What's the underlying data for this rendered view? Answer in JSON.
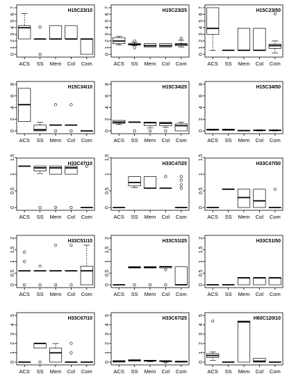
{
  "chart_data": [
    {
      "type": "boxplot",
      "title": "H15C23I10",
      "categories": [
        "ACS",
        "SS",
        "Mem",
        "Col",
        "Com"
      ],
      "ylim": [
        0,
        7
      ],
      "yticks": [
        0,
        1,
        2,
        3,
        4,
        5,
        6,
        7
      ],
      "boxes": [
        {
          "min": 2.3,
          "q1": 2.3,
          "median": 4.0,
          "q3": 4.3,
          "max": 6.1,
          "outliers": []
        },
        {
          "min": 2.3,
          "q1": 2.3,
          "median": 2.3,
          "q3": 2.3,
          "max": 2.3,
          "outliers": [
            4.1,
            0.0
          ]
        },
        {
          "min": 2.3,
          "q1": 2.3,
          "median": 2.3,
          "q3": 4.3,
          "max": 4.3,
          "outliers": []
        },
        {
          "min": 2.3,
          "q1": 2.3,
          "median": 2.3,
          "q3": 4.3,
          "max": 4.3,
          "outliers": []
        },
        {
          "min": 0.0,
          "q1": 0.0,
          "median": 2.3,
          "q3": 2.3,
          "max": 2.3,
          "outliers": []
        }
      ]
    },
    {
      "type": "boxplot",
      "title": "H15C23I25",
      "categories": [
        "ACS",
        "SS",
        "Mem",
        "Col",
        "Com"
      ],
      "ylim": [
        0,
        7
      ],
      "yticks": [
        0,
        1,
        2,
        3,
        4,
        5,
        6,
        7
      ],
      "boxes": [
        {
          "min": 1.4,
          "q1": 1.6,
          "median": 2.0,
          "q3": 2.5,
          "max": 2.7,
          "outliers": []
        },
        {
          "min": 1.3,
          "q1": 1.4,
          "median": 1.5,
          "q3": 1.6,
          "max": 1.8,
          "outliers": [
            1.0,
            2.0
          ]
        },
        {
          "min": 1.1,
          "q1": 1.1,
          "median": 1.3,
          "q3": 1.6,
          "max": 1.6,
          "outliers": []
        },
        {
          "min": 1.1,
          "q1": 1.1,
          "median": 1.3,
          "q3": 1.6,
          "max": 1.6,
          "outliers": []
        },
        {
          "min": 1.1,
          "q1": 1.3,
          "median": 1.5,
          "q3": 1.6,
          "max": 2.1,
          "outliers": [
            2.4
          ]
        }
      ]
    },
    {
      "type": "boxplot",
      "title": "H15C23I50",
      "categories": [
        "ACS",
        "SS",
        "Mem",
        "Col",
        "Com"
      ],
      "ylim": [
        0,
        7
      ],
      "yticks": [
        0,
        1,
        2,
        3,
        4,
        5,
        6,
        7
      ],
      "boxes": [
        {
          "min": 0.6,
          "q1": 3.0,
          "median": 3.9,
          "q3": 7.0,
          "max": 7.0,
          "outliers": []
        },
        {
          "min": 0.6,
          "q1": 0.6,
          "median": 0.6,
          "q3": 0.6,
          "max": 0.6,
          "outliers": []
        },
        {
          "min": 0.6,
          "q1": 0.6,
          "median": 0.6,
          "q3": 3.9,
          "max": 3.9,
          "outliers": []
        },
        {
          "min": 0.6,
          "q1": 0.6,
          "median": 0.6,
          "q3": 3.9,
          "max": 3.9,
          "outliers": []
        },
        {
          "min": 0.2,
          "q1": 0.9,
          "median": 1.3,
          "q3": 1.5,
          "max": 2.0,
          "outliers": [
            6.1
          ]
        }
      ]
    },
    {
      "type": "boxplot",
      "title": "H15C34I10",
      "categories": [
        "ACS",
        "SS",
        "Mem",
        "Col",
        "Com"
      ],
      "ylim": [
        0,
        8
      ],
      "yticks": [
        0,
        2,
        4,
        6,
        8
      ],
      "boxes": [
        {
          "min": 1.6,
          "q1": 1.6,
          "median": 4.5,
          "q3": 7.3,
          "max": 7.3,
          "outliers": []
        },
        {
          "min": 0.0,
          "q1": 0.0,
          "median": 0.2,
          "q3": 1.0,
          "max": 1.5,
          "outliers": []
        },
        {
          "min": 1.0,
          "q1": 1.0,
          "median": 1.0,
          "q3": 1.0,
          "max": 1.0,
          "outliers": [
            4.5,
            0.0
          ]
        },
        {
          "min": 1.0,
          "q1": 1.0,
          "median": 1.0,
          "q3": 1.0,
          "max": 1.0,
          "outliers": [
            4.5,
            0.0
          ]
        },
        {
          "min": 0.0,
          "q1": 0.0,
          "median": 0.0,
          "q3": 0.0,
          "max": 0.0,
          "outliers": []
        }
      ]
    },
    {
      "type": "boxplot",
      "title": "H15C34I25",
      "categories": [
        "ACS",
        "SS",
        "Mem",
        "Col",
        "Com"
      ],
      "ylim": [
        0,
        8
      ],
      "yticks": [
        0,
        2,
        4,
        6,
        8
      ],
      "boxes": [
        {
          "min": 1.1,
          "q1": 1.3,
          "median": 1.5,
          "q3": 1.8,
          "max": 1.8,
          "outliers": []
        },
        {
          "min": 1.5,
          "q1": 1.5,
          "median": 1.5,
          "q3": 1.5,
          "max": 1.5,
          "outliers": [
            0.0
          ]
        },
        {
          "min": 0.5,
          "q1": 0.9,
          "median": 1.4,
          "q3": 1.5,
          "max": 1.5,
          "outliers": [
            0.0
          ]
        },
        {
          "min": 0.6,
          "q1": 0.9,
          "median": 1.3,
          "q3": 1.5,
          "max": 1.5,
          "outliers": [
            0.0
          ]
        },
        {
          "min": 0.0,
          "q1": 0.0,
          "median": 0.9,
          "q3": 1.2,
          "max": 1.5,
          "outliers": []
        }
      ]
    },
    {
      "type": "boxplot",
      "title": "H15C34I50",
      "categories": [
        "ACS",
        "SS",
        "Mem",
        "Col",
        "Com"
      ],
      "ylim": [
        0,
        8
      ],
      "yticks": [
        0,
        2,
        4,
        6,
        8
      ],
      "boxes": [
        {
          "min": 0.1,
          "q1": 0.15,
          "median": 0.2,
          "q3": 0.3,
          "max": 0.3,
          "outliers": []
        },
        {
          "min": 0.1,
          "q1": 0.1,
          "median": 0.2,
          "q3": 0.3,
          "max": 0.3,
          "outliers": []
        },
        {
          "min": 0.0,
          "q1": 0.0,
          "median": 0.05,
          "q3": 0.1,
          "max": 0.1,
          "outliers": []
        },
        {
          "min": 0.0,
          "q1": 0.05,
          "median": 0.1,
          "q3": 0.15,
          "max": 0.2,
          "outliers": []
        },
        {
          "min": 0.0,
          "q1": 0.05,
          "median": 0.1,
          "q3": 0.15,
          "max": 0.2,
          "outliers": []
        }
      ]
    },
    {
      "type": "boxplot",
      "title": "H33C47I10",
      "categories": [
        "ACS",
        "SS",
        "Mem",
        "Col",
        "Com"
      ],
      "ylim": [
        0,
        1.4
      ],
      "yticks": [
        0,
        0.5,
        1,
        1.5
      ],
      "boxes": [
        {
          "min": 1.24,
          "q1": 1.24,
          "median": 1.24,
          "q3": 1.24,
          "max": 1.24,
          "outliers": []
        },
        {
          "min": 1.02,
          "q1": 1.1,
          "median": 1.19,
          "q3": 1.24,
          "max": 1.24,
          "outliers": [
            0.0
          ]
        },
        {
          "min": 1.0,
          "q1": 1.0,
          "median": 1.19,
          "q3": 1.24,
          "max": 1.24,
          "outliers": [
            0.0
          ]
        },
        {
          "min": 1.0,
          "q1": 1.0,
          "median": 1.19,
          "q3": 1.24,
          "max": 1.24,
          "outliers": [
            0.0
          ]
        },
        {
          "min": 0.0,
          "q1": 0.0,
          "median": 0.0,
          "q3": 0.0,
          "max": 0.0,
          "outliers": [
            1.24
          ]
        }
      ]
    },
    {
      "type": "boxplot",
      "title": "H33C47I25",
      "categories": [
        "ACS",
        "SS",
        "Mem",
        "Col",
        "Com"
      ],
      "ylim": [
        0,
        1.4
      ],
      "yticks": [
        0,
        0.5,
        1,
        1.5
      ],
      "boxes": [
        {
          "min": 0.0,
          "q1": 0.0,
          "median": 0.0,
          "q3": 0.0,
          "max": 0.0,
          "outliers": []
        },
        {
          "min": 0.6,
          "q1": 0.65,
          "median": 0.75,
          "q3": 0.93,
          "max": 0.93,
          "outliers": []
        },
        {
          "min": 0.58,
          "q1": 0.58,
          "median": 0.58,
          "q3": 0.93,
          "max": 0.93,
          "outliers": []
        },
        {
          "min": 0.58,
          "q1": 0.58,
          "median": 0.58,
          "q3": 0.58,
          "max": 0.58,
          "outliers": [
            0.93
          ]
        },
        {
          "min": 0.0,
          "q1": 0.0,
          "median": 0.0,
          "q3": 0.0,
          "max": 0.0,
          "outliers": [
            0.93,
            0.82,
            0.68,
            0.58
          ]
        }
      ]
    },
    {
      "type": "boxplot",
      "title": "H33C47I50",
      "categories": [
        "ACS",
        "SS",
        "Mem",
        "Col",
        "Com"
      ],
      "ylim": [
        0,
        1.4
      ],
      "yticks": [
        0,
        0.5,
        1,
        1.5
      ],
      "boxes": [
        {
          "min": 0.0,
          "q1": 0.0,
          "median": 0.0,
          "q3": 0.0,
          "max": 0.0,
          "outliers": []
        },
        {
          "min": 0.55,
          "q1": 0.55,
          "median": 0.55,
          "q3": 0.55,
          "max": 0.55,
          "outliers": []
        },
        {
          "min": 0.0,
          "q1": 0.0,
          "median": 0.3,
          "q3": 0.55,
          "max": 0.55,
          "outliers": []
        },
        {
          "min": 0.0,
          "q1": 0.0,
          "median": 0.2,
          "q3": 0.55,
          "max": 0.55,
          "outliers": []
        },
        {
          "min": 0.0,
          "q1": 0.0,
          "median": 0.0,
          "q3": 0.0,
          "max": 0.0,
          "outliers": [
            0.55
          ]
        }
      ]
    },
    {
      "type": "boxplot",
      "title": "H33C51I10",
      "categories": [
        "ACS",
        "SS",
        "Mem",
        "Col",
        "Com"
      ],
      "ylim": [
        0,
        2.0
      ],
      "yticks": [
        0,
        0.5,
        1,
        1.5,
        2
      ],
      "boxes": [
        {
          "min": 0.6,
          "q1": 0.6,
          "median": 0.6,
          "q3": 0.6,
          "max": 0.6,
          "outliers": [
            1.4,
            1.0,
            0.0
          ]
        },
        {
          "min": 0.6,
          "q1": 0.6,
          "median": 0.6,
          "q3": 0.6,
          "max": 0.6,
          "outliers": [
            0.8,
            0.0
          ]
        },
        {
          "min": 0.6,
          "q1": 0.6,
          "median": 0.6,
          "q3": 0.6,
          "max": 0.6,
          "outliers": [
            1.7,
            0.0
          ]
        },
        {
          "min": 0.6,
          "q1": 0.6,
          "median": 0.6,
          "q3": 0.6,
          "max": 0.6,
          "outliers": [
            1.7,
            0.0
          ]
        },
        {
          "min": 0.0,
          "q1": 0.0,
          "median": 0.6,
          "q3": 0.8,
          "max": 1.7,
          "outliers": []
        }
      ]
    },
    {
      "type": "boxplot",
      "title": "H33C51I25",
      "categories": [
        "ACS",
        "SS",
        "Mem",
        "Col",
        "Com"
      ],
      "ylim": [
        0,
        2.0
      ],
      "yticks": [
        0,
        0.5,
        1,
        1.5,
        2
      ],
      "boxes": [
        {
          "min": 0.0,
          "q1": 0.0,
          "median": 0.0,
          "q3": 0.0,
          "max": 0.0,
          "outliers": []
        },
        {
          "min": 0.72,
          "q1": 0.72,
          "median": 0.75,
          "q3": 0.78,
          "max": 0.78,
          "outliers": [
            0.0
          ]
        },
        {
          "min": 0.72,
          "q1": 0.72,
          "median": 0.75,
          "q3": 0.78,
          "max": 0.78,
          "outliers": [
            0.0
          ]
        },
        {
          "min": 0.72,
          "q1": 0.72,
          "median": 0.78,
          "q3": 0.78,
          "max": 0.78,
          "outliers": [
            0.65,
            0.0
          ]
        },
        {
          "min": 0.0,
          "q1": 0.0,
          "median": 0.0,
          "q3": 0.78,
          "max": 0.78,
          "outliers": []
        }
      ]
    },
    {
      "type": "boxplot",
      "title": "H33C51I50",
      "categories": [
        "ACS",
        "SS",
        "Mem",
        "Col",
        "Com"
      ],
      "ylim": [
        0,
        2.0
      ],
      "yticks": [
        0,
        0.5,
        1,
        1.5,
        2
      ],
      "boxes": [
        {
          "min": 0.0,
          "q1": 0.0,
          "median": 0.0,
          "q3": 0.0,
          "max": 0.0,
          "outliers": []
        },
        {
          "min": 0.0,
          "q1": 0.0,
          "median": 0.0,
          "q3": 0.0,
          "max": 0.0,
          "outliers": []
        },
        {
          "min": 0.0,
          "q1": 0.0,
          "median": 0.3,
          "q3": 0.3,
          "max": 0.3,
          "outliers": []
        },
        {
          "min": 0.0,
          "q1": 0.0,
          "median": 0.3,
          "q3": 0.3,
          "max": 0.3,
          "outliers": []
        },
        {
          "min": 0.0,
          "q1": 0.0,
          "median": 0.3,
          "q3": 0.3,
          "max": 0.3,
          "outliers": []
        }
      ]
    },
    {
      "type": "boxplot",
      "title": "H33C67I10",
      "categories": [
        "ACS",
        "SS",
        "Mem",
        "Col",
        "Com"
      ],
      "ylim": [
        0,
        5
      ],
      "yticks": [
        0,
        1,
        2,
        3,
        4,
        5
      ],
      "boxes": [
        {
          "min": 0.0,
          "q1": 0.0,
          "median": 0.0,
          "q3": 0.0,
          "max": 0.0,
          "outliers": []
        },
        {
          "min": 1.5,
          "q1": 1.5,
          "median": 2.0,
          "q3": 2.0,
          "max": 2.0,
          "outliers": [
            0.0
          ]
        },
        {
          "min": 0.0,
          "q1": 0.0,
          "median": 1.0,
          "q3": 1.5,
          "max": 2.0,
          "outliers": []
        },
        {
          "min": 0.0,
          "q1": 0.0,
          "median": 0.0,
          "q3": 0.0,
          "max": 0.0,
          "outliers": [
            2.0,
            1.0
          ]
        },
        {
          "min": 0.0,
          "q1": 0.0,
          "median": 0.0,
          "q3": 0.0,
          "max": 0.0,
          "outliers": []
        }
      ]
    },
    {
      "type": "boxplot",
      "title": "H33C67I25",
      "categories": [
        "ACS",
        "SS",
        "Mem",
        "Col",
        "Com"
      ],
      "ylim": [
        0,
        5
      ],
      "yticks": [
        0,
        1,
        2,
        3,
        4,
        5
      ],
      "boxes": [
        {
          "min": 0.0,
          "q1": 0.0,
          "median": 0.1,
          "q3": 0.15,
          "max": 0.15,
          "outliers": []
        },
        {
          "min": 0.1,
          "q1": 0.1,
          "median": 0.2,
          "q3": 0.25,
          "max": 0.25,
          "outliers": []
        },
        {
          "min": 0.05,
          "q1": 0.1,
          "median": 0.15,
          "q3": 0.2,
          "max": 0.2,
          "outliers": []
        },
        {
          "min": 0.0,
          "q1": 0.05,
          "median": 0.1,
          "q3": 0.15,
          "max": 0.15,
          "outliers": [
            0.0
          ]
        },
        {
          "min": 0.0,
          "q1": 0.0,
          "median": 0.05,
          "q3": 0.1,
          "max": 0.1,
          "outliers": []
        }
      ]
    },
    {
      "type": "boxplot",
      "title": "H60C120I10",
      "categories": [
        "ACS",
        "SS",
        "Mem",
        "Col",
        "Com"
      ],
      "ylim": [
        0,
        5
      ],
      "yticks": [
        0,
        1,
        2,
        3,
        4,
        5
      ],
      "boxes": [
        {
          "min": 0.2,
          "q1": 0.5,
          "median": 0.7,
          "q3": 0.9,
          "max": 1.1,
          "outliers": [
            4.4
          ]
        },
        {
          "min": 0.0,
          "q1": 0.0,
          "median": 0.0,
          "q3": 0.0,
          "max": 0.0,
          "outliers": []
        },
        {
          "min": 0.0,
          "q1": 0.0,
          "median": 4.3,
          "q3": 4.4,
          "max": 4.4,
          "outliers": []
        },
        {
          "min": 0.0,
          "q1": 0.0,
          "median": 0.1,
          "q3": 0.4,
          "max": 0.4,
          "outliers": []
        },
        {
          "min": 0.0,
          "q1": 0.0,
          "median": 0.0,
          "q3": 0.0,
          "max": 0.0,
          "outliers": []
        }
      ]
    }
  ]
}
